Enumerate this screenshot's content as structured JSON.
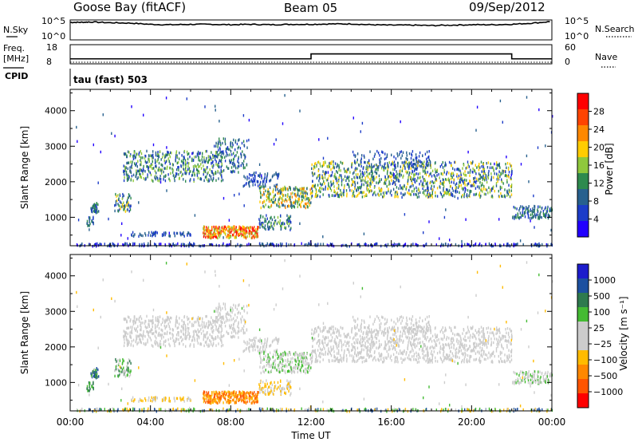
{
  "header": {
    "station": "Goose Bay (fitACF)",
    "beam": "Beam 05",
    "date": "09/Sep/2012"
  },
  "left_labels": {
    "nsky": "N.Sky",
    "freq_line1": "Freq.",
    "freq_line2": "[MHz]",
    "cpid": "CPID"
  },
  "right_labels": {
    "nsearch": "N.Search",
    "nave": "Nave"
  },
  "cpid_text": "tau (fast) 503",
  "colors": {
    "power_scale": [
      "#2200ff",
      "#1c3cc8",
      "#27608e",
      "#2e8a4e",
      "#8fc83c",
      "#ffcc00",
      "#ff8800",
      "#ff4400",
      "#ff0000"
    ],
    "velocity_scale": [
      "#ff0000",
      "#ff5500",
      "#ff8800",
      "#ffbb00",
      "#cccccc",
      "#cccccc",
      "#44bb33",
      "#2e7a4e",
      "#1c50a0",
      "#1c1ccc"
    ]
  },
  "chart_data": [
    {
      "type": "line",
      "panel": "noise",
      "series": [
        {
          "name": "N.Sky",
          "x": [
            0,
            0.5,
            1,
            2,
            3,
            4,
            5,
            6,
            7,
            8,
            9,
            10,
            11,
            12,
            13,
            14,
            15,
            16,
            17,
            18,
            19,
            20,
            21,
            22,
            23,
            24
          ],
          "y": [
            4.4,
            4.4,
            4.5,
            4.3,
            4.2,
            3.9,
            3.8,
            3.9,
            3.9,
            3.8,
            3.9,
            3.8,
            3.9,
            3.9,
            4.0,
            4.0,
            3.8,
            3.7,
            3.7,
            3.6,
            3.7,
            3.8,
            3.8,
            3.9,
            4.2,
            4.6
          ]
        }
      ],
      "ylim_left": [
        0,
        5
      ],
      "yticks_left": [
        "10^5",
        "10^0"
      ],
      "yticks_right": [
        "10^5",
        "10^0"
      ]
    },
    {
      "type": "line",
      "panel": "frequency",
      "series": [
        {
          "name": "Freq.",
          "x": [
            0,
            12,
            12,
            22,
            22,
            24
          ],
          "y": [
            10.6,
            10.6,
            13.2,
            13.2,
            10.6,
            10.6
          ]
        },
        {
          "name": "Nave",
          "x": [
            0,
            24
          ],
          "y": [
            5,
            5
          ]
        }
      ],
      "ylim_left": [
        8,
        18
      ],
      "yticks_left": [
        "18",
        "8"
      ],
      "ylim_right": [
        0,
        60
      ],
      "yticks_right": [
        "60",
        "0"
      ]
    },
    {
      "type": "heatmap",
      "panel": "power",
      "ylabel": "Slant Range [km]",
      "yticks": [
        "1000",
        "2000",
        "3000",
        "4000"
      ],
      "colorbar_label": "Power [dB]",
      "colorbar_ticks": [
        "4",
        "8",
        "12",
        "16",
        "20",
        "24",
        "28"
      ],
      "xlim": [
        0,
        24
      ],
      "ylim": [
        200,
        4600
      ]
    },
    {
      "type": "heatmap",
      "panel": "velocity",
      "xlabel": "Time UT",
      "ylabel": "Slant Range [km]",
      "yticks": [
        "1000",
        "2000",
        "3000",
        "4000"
      ],
      "xticks": [
        "00:00",
        "04:00",
        "08:00",
        "12:00",
        "16:00",
        "20:00",
        "00:00"
      ],
      "colorbar_label": "Velocity [m s⁻¹]",
      "colorbar_ticks": [
        "1000",
        "500",
        "100",
        "25",
        "−25",
        "−100",
        "−500",
        "−1000"
      ],
      "xlim": [
        0,
        24
      ],
      "ylim": [
        200,
        4600
      ]
    }
  ]
}
